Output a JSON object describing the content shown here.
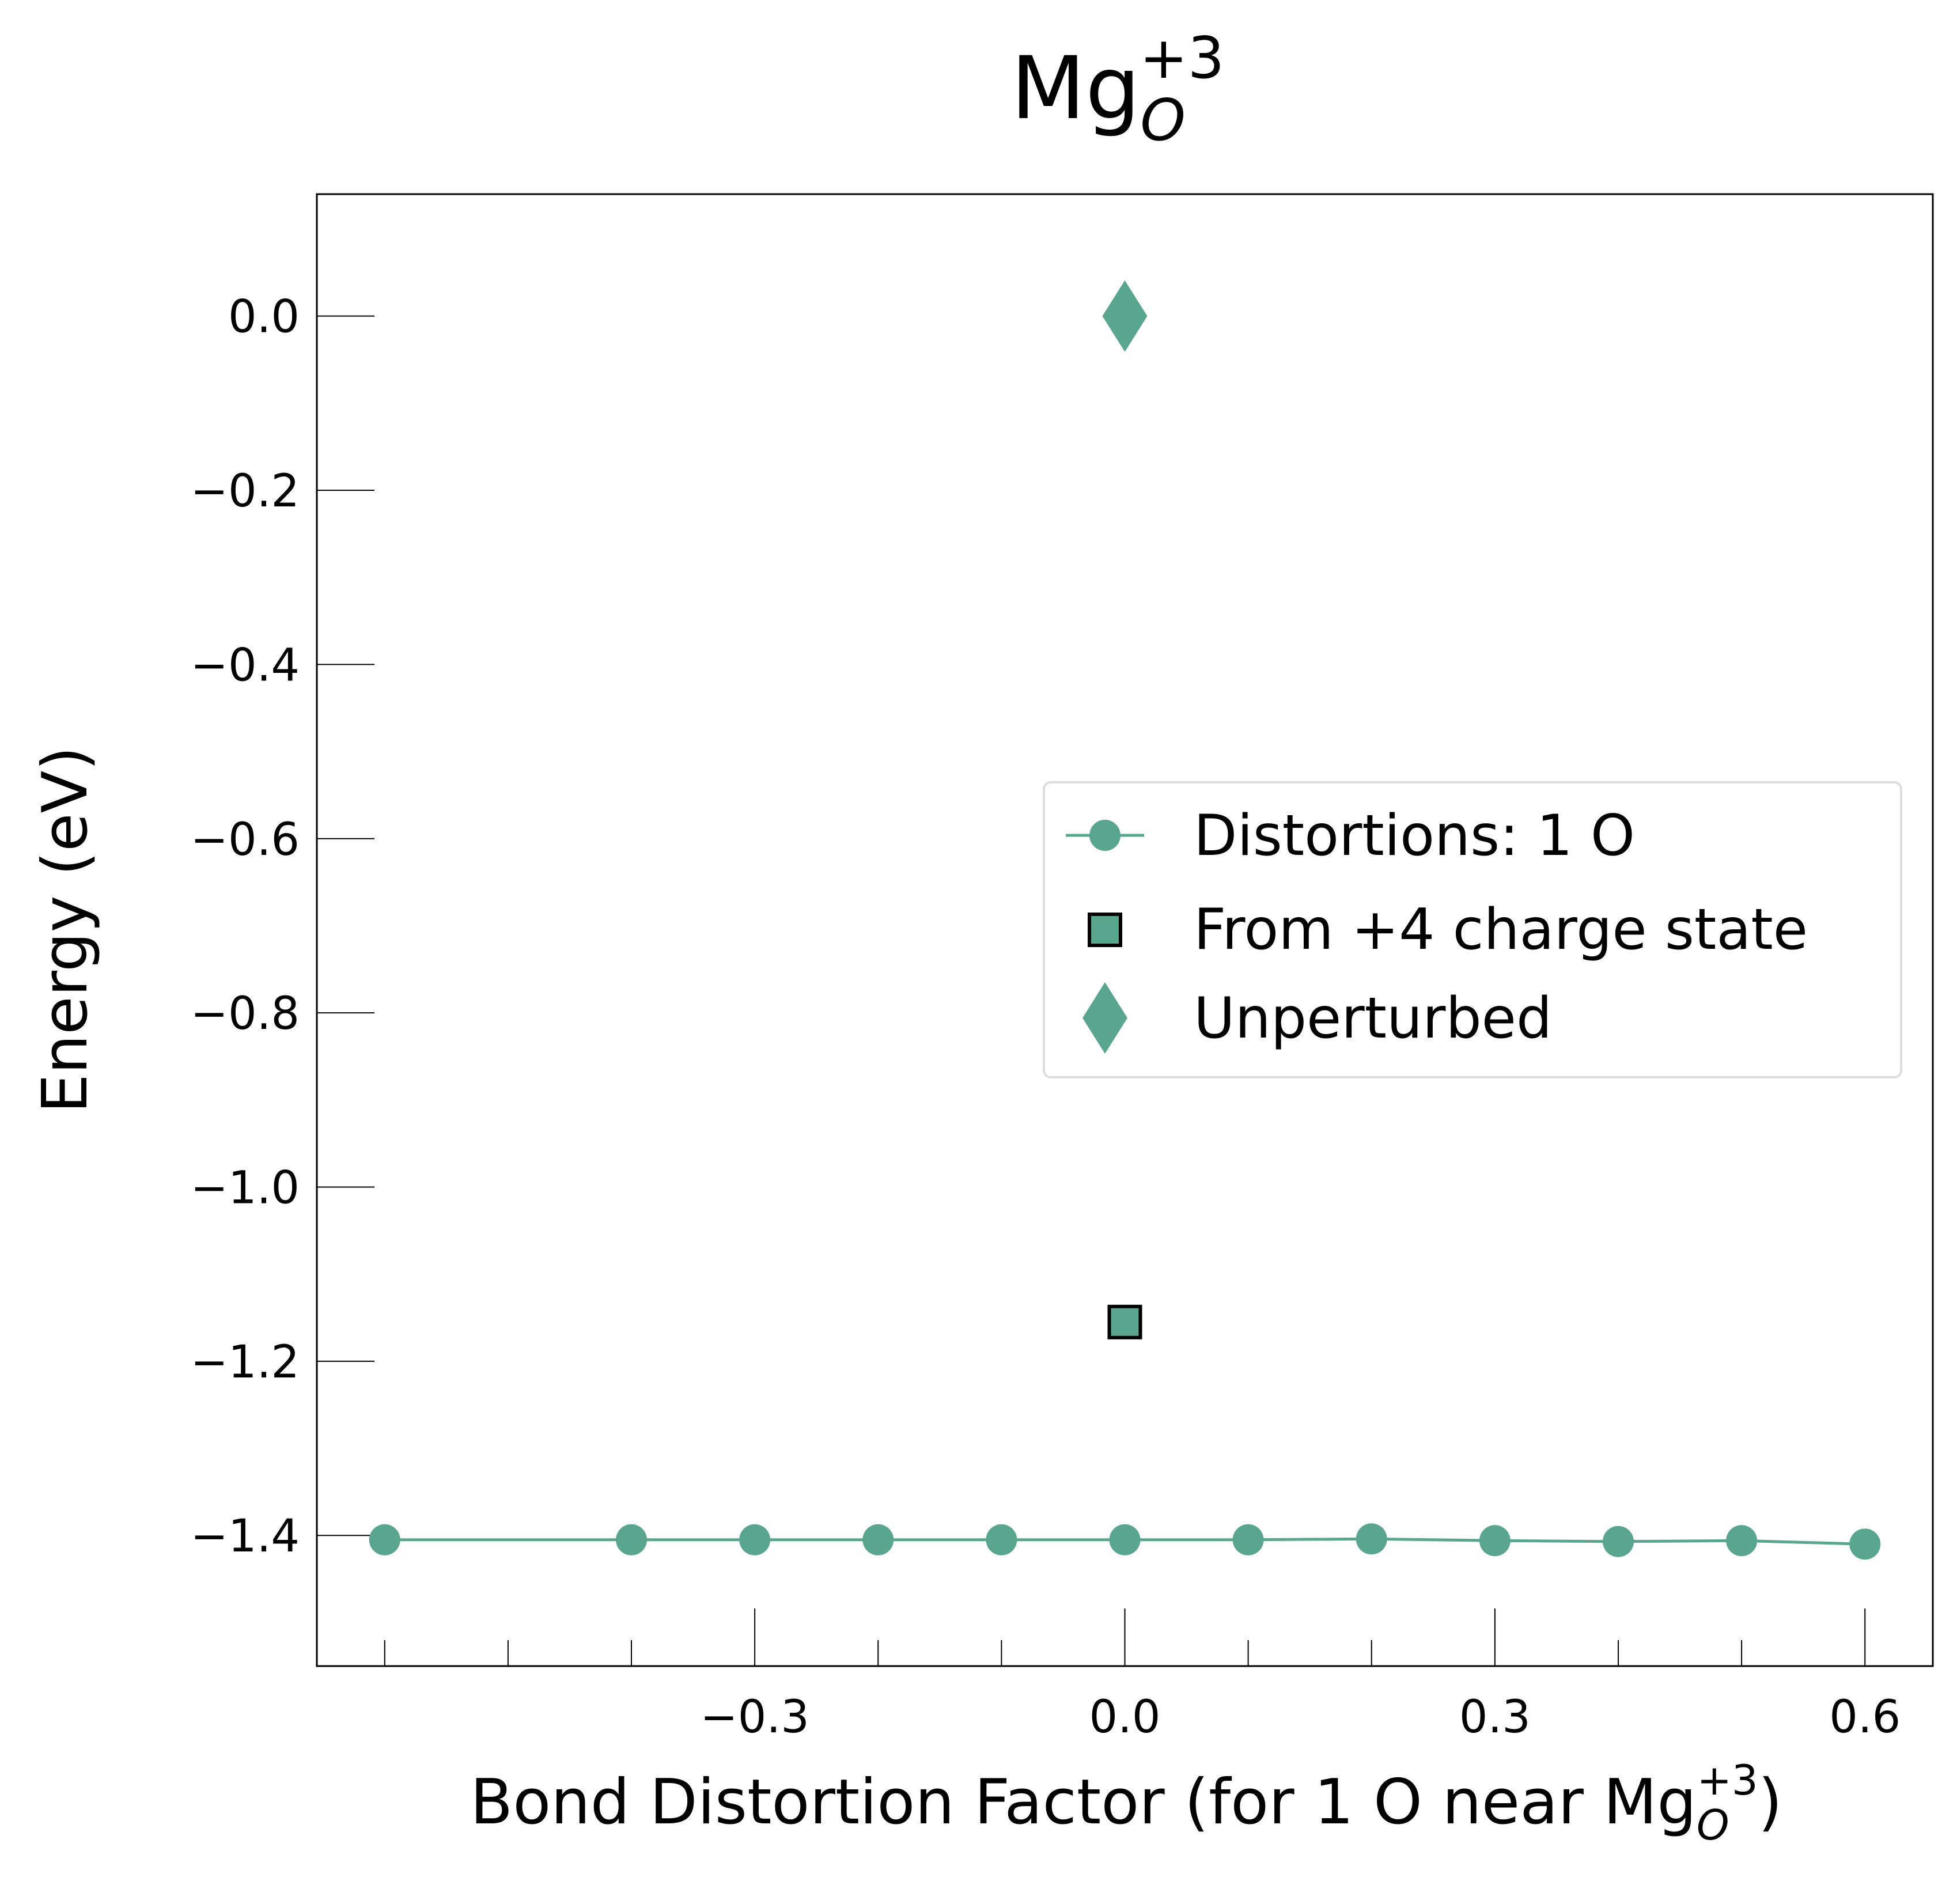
{
  "chart_data": {
    "type": "scatter",
    "title": {
      "base": "Mg",
      "subscript": "O",
      "superscript": "+3"
    },
    "xlabel": {
      "prefix": "Bond Distortion Factor (for 1 O near Mg",
      "subscript": "O",
      "superscript": "+3",
      "suffix": ")"
    },
    "ylabel": "Energy (eV)",
    "xlim": [
      -0.655,
      0.655
    ],
    "ylim": [
      -1.55,
      0.14
    ],
    "x_ticks": [
      -0.3,
      0.0,
      0.3,
      0.6
    ],
    "x_tick_labels": [
      "−0.3",
      "0.0",
      "0.3",
      "0.6"
    ],
    "x_minor_ticks": [
      -0.6,
      -0.5,
      -0.4,
      -0.2,
      -0.1,
      0.1,
      0.2,
      0.4,
      0.5
    ],
    "y_ticks": [
      0.0,
      -0.2,
      -0.4,
      -0.6,
      -0.8,
      -1.0,
      -1.2,
      -1.4
    ],
    "y_tick_labels": [
      "0.0",
      "−0.2",
      "−0.4",
      "−0.6",
      "−0.8",
      "−1.0",
      "−1.2",
      "−1.4"
    ],
    "grid": false,
    "legend_position": "center-right",
    "color": "#5aa58e",
    "series": [
      {
        "name": "Distortions: 1 O",
        "marker": "circle",
        "line": true,
        "x": [
          -0.6,
          -0.4,
          -0.3,
          -0.2,
          -0.1,
          0.0,
          0.1,
          0.2,
          0.3,
          0.4,
          0.5,
          0.6
        ],
        "y": [
          -1.405,
          -1.405,
          -1.405,
          -1.405,
          -1.405,
          -1.405,
          -1.405,
          -1.404,
          -1.406,
          -1.407,
          -1.406,
          -1.41
        ]
      },
      {
        "name": "From +4 charge state",
        "marker": "square",
        "line": false,
        "x": [
          0.0
        ],
        "y": [
          -1.155
        ]
      },
      {
        "name": "Unperturbed",
        "marker": "diamond",
        "line": false,
        "x": [
          0.0
        ],
        "y": [
          0.0
        ]
      }
    ]
  }
}
